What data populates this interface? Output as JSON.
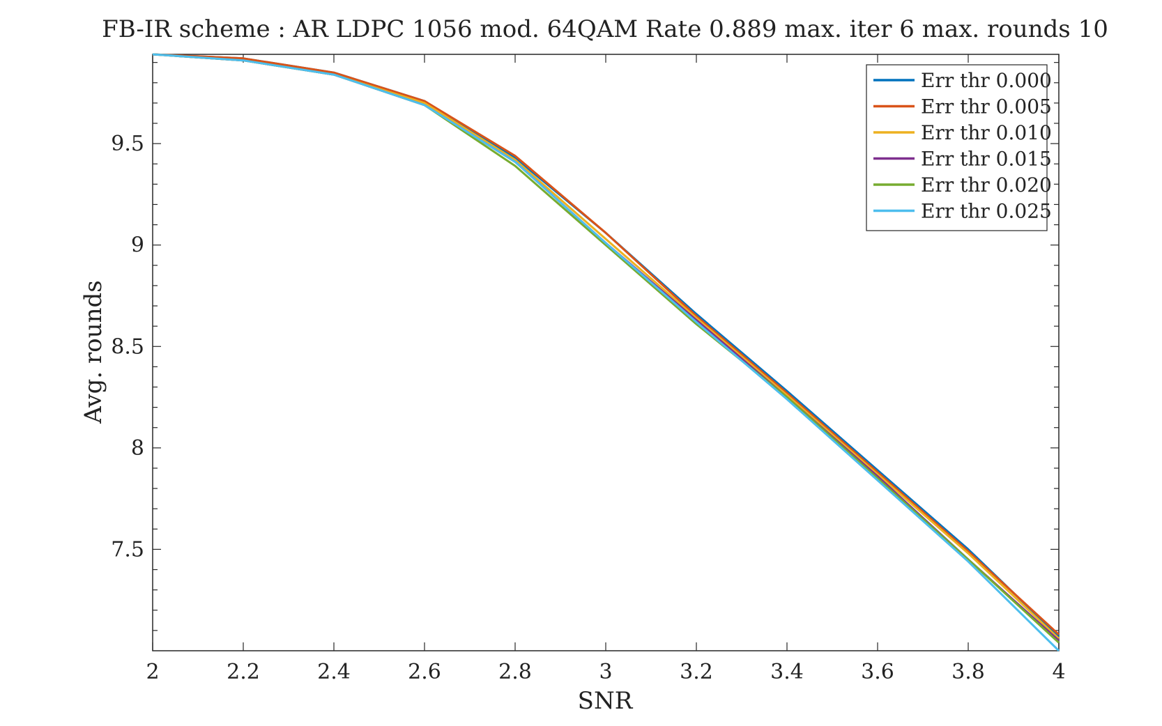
{
  "chart_data": {
    "type": "line",
    "title": "FB-IR scheme : AR LDPC 1056 mod. 64QAM Rate 0.889 max. iter 6 max. rounds 10",
    "xlabel": "SNR",
    "ylabel": "Avg. rounds",
    "xlim": [
      2,
      4
    ],
    "ylim": [
      7.0,
      9.94
    ],
    "x_ticks": [
      2,
      2.2,
      2.4,
      2.6,
      2.8,
      3,
      3.2,
      3.4,
      3.6,
      3.8,
      4
    ],
    "x_tick_labels": [
      "2",
      "2.2",
      "2.4",
      "2.6",
      "2.8",
      "3",
      "3.2",
      "3.4",
      "3.6",
      "3.8",
      "4"
    ],
    "y_ticks": [
      7.5,
      8,
      8.5,
      9,
      9.5
    ],
    "y_tick_labels": [
      "7.5",
      "8",
      "8.5",
      "9",
      "9.5"
    ],
    "grid": false,
    "legend_position": "top-right",
    "x": [
      2,
      2.2,
      2.4,
      2.6,
      2.8,
      3,
      3.2,
      3.4,
      3.6,
      3.8,
      4
    ],
    "series": [
      {
        "name": "Err thr 0.000",
        "color": "#0072BD",
        "values": [
          9.94,
          9.92,
          9.85,
          9.71,
          9.43,
          9.06,
          8.66,
          8.28,
          7.89,
          7.5,
          7.07
        ]
      },
      {
        "name": "Err thr 0.005",
        "color": "#D95319",
        "values": [
          9.94,
          9.92,
          9.85,
          9.71,
          9.44,
          9.06,
          8.65,
          8.27,
          7.88,
          7.49,
          7.08
        ]
      },
      {
        "name": "Err thr 0.010",
        "color": "#EDB120",
        "values": [
          9.94,
          9.91,
          9.84,
          9.7,
          9.42,
          9.03,
          8.64,
          8.26,
          7.87,
          7.48,
          7.06
        ]
      },
      {
        "name": "Err thr 0.015",
        "color": "#7E2F8E",
        "values": [
          9.94,
          9.91,
          9.84,
          9.69,
          9.41,
          9.01,
          8.63,
          8.25,
          7.86,
          7.45,
          7.05
        ]
      },
      {
        "name": "Err thr 0.020",
        "color": "#77AC30",
        "values": [
          9.94,
          9.91,
          9.84,
          9.69,
          9.39,
          9.0,
          8.61,
          8.25,
          7.85,
          7.45,
          7.04
        ]
      },
      {
        "name": "Err thr 0.025",
        "color": "#4DBEEE",
        "values": [
          9.94,
          9.91,
          9.84,
          9.69,
          9.41,
          9.01,
          8.62,
          8.24,
          7.84,
          7.44,
          7.0
        ]
      }
    ]
  }
}
